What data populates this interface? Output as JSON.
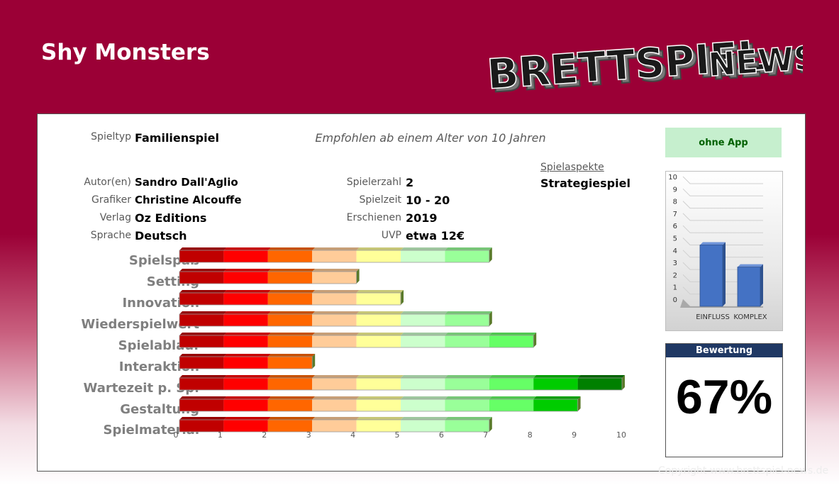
{
  "title": "Shy Monsters",
  "logo": {
    "word1": "BRETTSPIEL",
    "word2": "NEWS"
  },
  "info": {
    "spieltyp": {
      "label": "Spieltyp",
      "value": "Familienspiel"
    },
    "age_note": "Empfohlen ab einem Alter von 10 Jahren",
    "autor": {
      "label": "Autor(en)",
      "value": "Sandro Dall'Aglio"
    },
    "grafiker": {
      "label": "Grafiker",
      "value": "Christine Alcouffe"
    },
    "verlag": {
      "label": "Verlag",
      "value": "Oz Editions"
    },
    "sprache": {
      "label": "Sprache",
      "value": "Deutsch"
    },
    "spielerzahl": {
      "label": "Spielerzahl",
      "value": "2"
    },
    "spielzeit": {
      "label": "Spielzeit",
      "value": "10 - 20"
    },
    "erschienen": {
      "label": "Erschienen",
      "value": "2019"
    },
    "uvp": {
      "label": "UVP",
      "value": "etwa 12€"
    },
    "aspekte": {
      "label": "Spielaspekte",
      "value": "Strategiespiel"
    }
  },
  "app_badge": "ohne App",
  "score": {
    "label": "Bewertung",
    "value": "67%"
  },
  "copyright": "Copyright www.brettspiel-news.de",
  "colors": {
    "segments": [
      "#c00000",
      "#ff0000",
      "#ff6600",
      "#ffcc99",
      "#ffff99",
      "#ccffcc",
      "#99ff99",
      "#66ff66",
      "#00cc00",
      "#008000"
    ],
    "bar_blue": "#4472c4"
  },
  "chart_data": [
    {
      "type": "bar",
      "orientation": "horizontal",
      "categories": [
        "Spielspaß",
        "Setting",
        "Innovation",
        "Wiederspielwert",
        "Spielablauf",
        "Interaktion",
        "Wartezeit p. Sp.",
        "Gestaltung",
        "Spielmaterial"
      ],
      "values": [
        7,
        4,
        5,
        7,
        8,
        3,
        10,
        9,
        7
      ],
      "xlim": [
        0,
        10
      ],
      "xticks": [
        "0",
        "1",
        "2",
        "3",
        "4",
        "5",
        "6",
        "7",
        "8",
        "9",
        "10"
      ],
      "grid": false
    },
    {
      "type": "bar",
      "categories": [
        "EINFLUSS",
        "KOMPLEX"
      ],
      "values": [
        5,
        3.2
      ],
      "ylim": [
        0,
        10
      ],
      "yticks": [
        "0",
        "1",
        "2",
        "3",
        "4",
        "5",
        "6",
        "7",
        "8",
        "9",
        "10"
      ],
      "grid": true
    }
  ]
}
